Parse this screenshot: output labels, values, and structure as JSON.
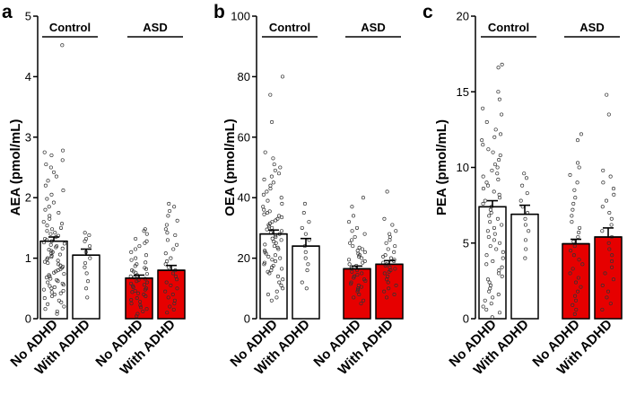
{
  "chart_data": [
    {
      "panel": "a",
      "type": "bar",
      "ylabel": "AEA (pmol/mL)",
      "ylim": [
        0,
        5
      ],
      "yticks": [
        0,
        1,
        2,
        3,
        4,
        5
      ],
      "categories": [
        "No ADHD",
        "With ADHD",
        "No ADHD",
        "With ADHD"
      ],
      "groups": [
        {
          "label": "Control",
          "categories": [
            0,
            1
          ]
        },
        {
          "label": "ASD",
          "categories": [
            2,
            3
          ]
        }
      ],
      "values": [
        1.28,
        1.05,
        0.67,
        0.8
      ],
      "errors": [
        0.07,
        0.1,
        0.05,
        0.08
      ],
      "bar_colors": [
        "#ffffff",
        "#ffffff",
        "#e60000",
        "#e60000"
      ],
      "points": [
        [
          4.52,
          2.78,
          2.75,
          2.7,
          2.62,
          2.55,
          2.5,
          2.42,
          2.35,
          2.28,
          2.2,
          2.12,
          2.05,
          1.98,
          1.92,
          1.85,
          1.8,
          1.75,
          1.7,
          1.65,
          1.6,
          1.57,
          1.54,
          1.5,
          1.48,
          1.45,
          1.42,
          1.4,
          1.37,
          1.35,
          1.32,
          1.3,
          1.28,
          1.26,
          1.24,
          1.22,
          1.2,
          1.18,
          1.16,
          1.14,
          1.12,
          1.1,
          1.08,
          1.06,
          1.04,
          1.02,
          1.0,
          0.98,
          0.96,
          0.94,
          0.92,
          0.9,
          0.88,
          0.86,
          0.84,
          0.82,
          0.8,
          0.78,
          0.76,
          0.74,
          0.72,
          0.7,
          0.68,
          0.66,
          0.64,
          0.62,
          0.6,
          0.58,
          0.56,
          0.54,
          0.52,
          0.5,
          0.48,
          0.46,
          0.44,
          0.42,
          0.4,
          0.37,
          0.34,
          0.3,
          0.27,
          0.24,
          0.2,
          0.16,
          0.12,
          0.08
        ],
        [
          1.42,
          1.38,
          1.32,
          1.28,
          1.2,
          1.1,
          1.0,
          0.92,
          0.85,
          0.75,
          0.62,
          0.5,
          0.35
        ],
        [
          1.48,
          1.45,
          1.4,
          1.32,
          1.28,
          1.25,
          1.2,
          1.15,
          1.1,
          1.05,
          1.0,
          0.97,
          0.93,
          0.9,
          0.87,
          0.84,
          0.82,
          0.8,
          0.78,
          0.76,
          0.74,
          0.72,
          0.7,
          0.68,
          0.66,
          0.64,
          0.62,
          0.6,
          0.58,
          0.56,
          0.54,
          0.52,
          0.5,
          0.48,
          0.46,
          0.44,
          0.42,
          0.4,
          0.37,
          0.34,
          0.31,
          0.28,
          0.25,
          0.22,
          0.19,
          0.16,
          0.12,
          0.08,
          0.04
        ],
        [
          1.9,
          1.85,
          1.78,
          1.7,
          1.62,
          1.55,
          1.48,
          1.42,
          1.38,
          1.3,
          1.22,
          1.15,
          1.08,
          1.0,
          0.95,
          0.9,
          0.85,
          0.8,
          0.75,
          0.7,
          0.65,
          0.6,
          0.55,
          0.5,
          0.45,
          0.4,
          0.35,
          0.3,
          0.25,
          0.2,
          0.15,
          0.1
        ]
      ]
    },
    {
      "panel": "b",
      "type": "bar",
      "ylabel": "OEA (pmol/mL)",
      "ylim": [
        0,
        100
      ],
      "yticks": [
        0,
        20,
        40,
        60,
        80,
        100
      ],
      "categories": [
        "No ADHD",
        "With ADHD",
        "No ADHD",
        "With ADHD"
      ],
      "groups": [
        {
          "label": "Control",
          "categories": [
            0,
            1
          ]
        },
        {
          "label": "ASD",
          "categories": [
            2,
            3
          ]
        }
      ],
      "values": [
        28.0,
        24.0,
        16.5,
        18.0
      ],
      "errors": [
        1.3,
        2.5,
        0.9,
        1.2
      ],
      "bar_colors": [
        "#ffffff",
        "#ffffff",
        "#e60000",
        "#e60000"
      ],
      "points": [
        [
          80,
          74,
          65,
          55,
          53,
          51,
          50,
          49,
          48,
          47,
          46,
          45,
          44,
          43,
          42,
          41,
          40,
          39,
          38,
          37,
          36,
          35.5,
          35,
          34.5,
          34,
          33.5,
          33,
          32.5,
          32,
          31.5,
          31,
          30.5,
          30,
          29.5,
          29,
          28.5,
          28,
          27.5,
          27,
          26.5,
          26,
          25.5,
          25,
          24.5,
          24,
          23.5,
          23,
          22.5,
          22,
          21.5,
          21,
          20.5,
          20,
          19.5,
          19,
          18.5,
          18,
          17.5,
          17,
          16.5,
          16,
          15.5,
          15,
          14,
          13,
          12,
          11,
          10,
          9,
          8,
          7,
          6
        ],
        [
          38,
          35,
          32,
          30,
          28,
          26,
          24,
          22,
          20,
          18,
          16,
          12,
          10
        ],
        [
          40,
          37,
          34,
          32,
          30,
          29,
          28,
          27,
          26,
          25,
          24,
          23.5,
          23,
          22.5,
          22,
          21.5,
          21,
          20.5,
          20,
          19.5,
          19,
          18.5,
          18,
          17.5,
          17,
          16.5,
          16,
          15.5,
          15,
          14.5,
          14,
          13.5,
          13,
          12.5,
          12,
          11.5,
          11,
          10.5,
          10,
          9.5,
          9,
          8,
          7,
          6,
          5
        ],
        [
          42,
          33,
          31,
          29,
          28,
          27,
          26,
          25,
          24,
          23,
          22,
          21,
          20.5,
          20,
          19.5,
          19,
          18.5,
          18,
          17.5,
          17,
          16.5,
          16,
          15.5,
          15,
          14,
          13,
          12,
          11,
          10,
          9,
          8,
          7
        ]
      ]
    },
    {
      "panel": "c",
      "type": "bar",
      "ylabel": "PEA (pmol/mL)",
      "ylim": [
        0,
        20
      ],
      "yticks": [
        0,
        5,
        10,
        15,
        20
      ],
      "categories": [
        "No ADHD",
        "With ADHD",
        "No ADHD",
        "With ADHD"
      ],
      "groups": [
        {
          "label": "Control",
          "categories": [
            0,
            1
          ]
        },
        {
          "label": "ASD",
          "categories": [
            2,
            3
          ]
        }
      ],
      "values": [
        7.4,
        6.9,
        4.95,
        5.4
      ],
      "errors": [
        0.4,
        0.6,
        0.3,
        0.6
      ],
      "bar_colors": [
        "#ffffff",
        "#ffffff",
        "#e60000",
        "#e60000"
      ],
      "points": [
        [
          16.8,
          16.6,
          15.0,
          14.5,
          13.9,
          13.5,
          13.0,
          12.5,
          12.2,
          12.0,
          11.8,
          11.5,
          11.2,
          11.0,
          10.8,
          10.5,
          10.2,
          10.0,
          9.8,
          9.6,
          9.4,
          9.2,
          9.0,
          8.8,
          8.6,
          8.4,
          8.2,
          8.0,
          7.8,
          7.6,
          7.4,
          7.2,
          7.0,
          6.8,
          6.6,
          6.4,
          6.2,
          6.0,
          5.8,
          5.6,
          5.4,
          5.2,
          5.0,
          4.8,
          4.6,
          4.4,
          4.2,
          4.0,
          3.8,
          3.6,
          3.4,
          3.2,
          3.0,
          2.8,
          2.6,
          2.4,
          2.2,
          2.0,
          1.8,
          1.6,
          1.4,
          1.2,
          1.0,
          0.8,
          0.6,
          0.4,
          0.1
        ],
        [
          9.6,
          9.3,
          8.8,
          8.3,
          7.8,
          7.4,
          7.0,
          6.6,
          6.2,
          5.8,
          5.2,
          4.6,
          4.0
        ],
        [
          12.2,
          11.8,
          10.3,
          10.0,
          9.5,
          9.0,
          8.5,
          8.0,
          7.6,
          7.2,
          6.8,
          6.4,
          6.0,
          5.7,
          5.4,
          5.1,
          4.8,
          4.5,
          4.2,
          3.9,
          3.6,
          3.3,
          3.0,
          2.7,
          2.4,
          2.1,
          1.8,
          1.5,
          1.2,
          0.9,
          0.6,
          0.3
        ],
        [
          14.8,
          13.5,
          9.8,
          9.4,
          9.0,
          8.6,
          8.2,
          7.8,
          7.4,
          7.0,
          6.6,
          6.2,
          5.8,
          5.4,
          5.0,
          4.6,
          4.2,
          3.8,
          3.4,
          3.0,
          2.6,
          2.2,
          1.8,
          1.4,
          1.0,
          0.6
        ]
      ]
    }
  ]
}
